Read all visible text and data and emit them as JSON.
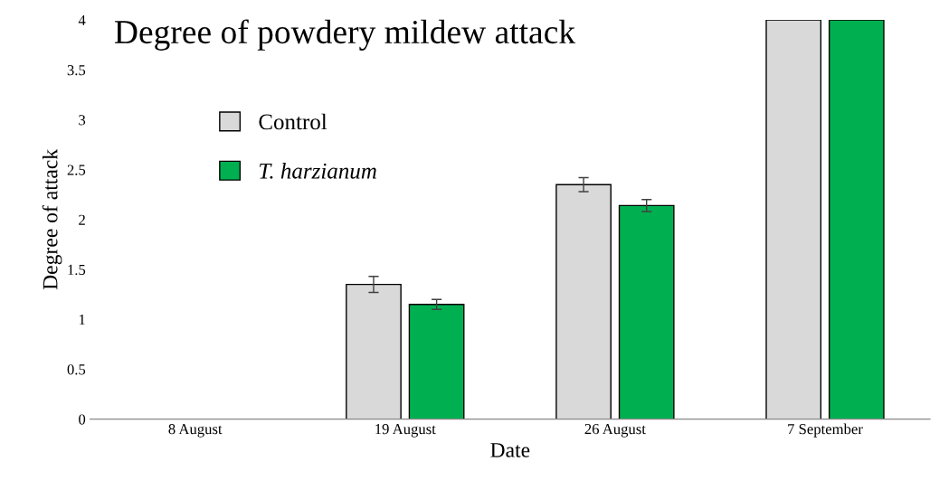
{
  "chart_data": {
    "type": "bar",
    "title": "Degree of powdery mildew attack",
    "xlabel": "Date",
    "ylabel": "Degree of attack",
    "categories": [
      "8 August",
      "19 August",
      "26 August",
      "7 September"
    ],
    "series": [
      {
        "name": "Control",
        "color": "#d9d9d9",
        "values": [
          null,
          1.35,
          2.35,
          4
        ],
        "errors": [
          null,
          0.08,
          0.07,
          null
        ]
      },
      {
        "name": "T. harzianum",
        "color": "#00b050",
        "values": [
          null,
          1.15,
          2.14,
          4
        ],
        "errors": [
          null,
          0.05,
          0.06,
          null
        ]
      }
    ],
    "ylim": [
      0,
      4
    ],
    "yticks": [
      0,
      0.5,
      1,
      1.5,
      2,
      2.5,
      3,
      3.5,
      4
    ],
    "grid": false,
    "legend": "top left"
  }
}
